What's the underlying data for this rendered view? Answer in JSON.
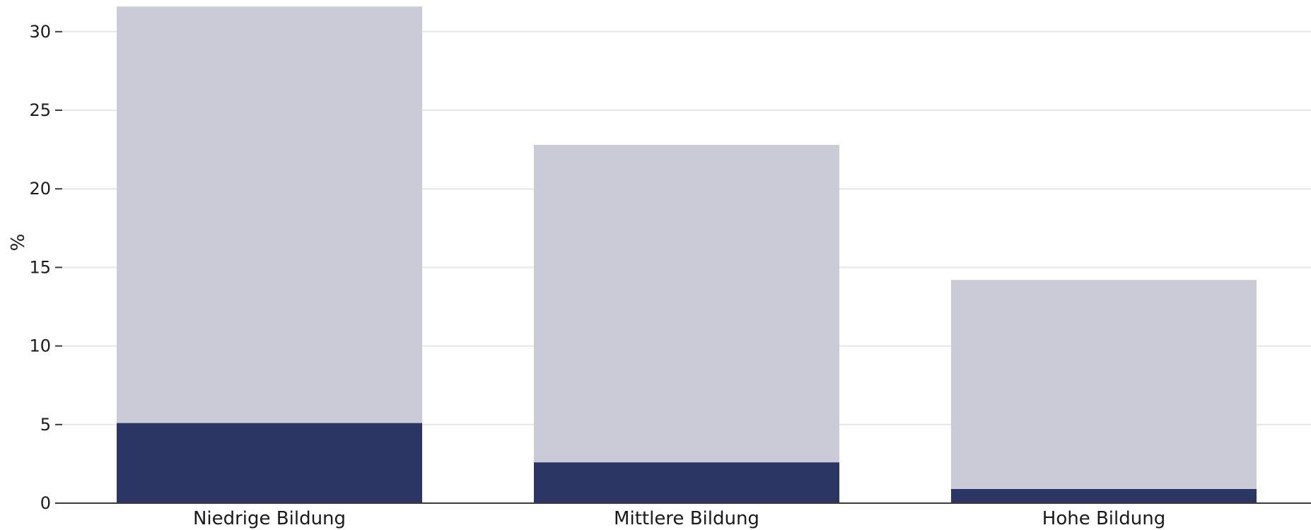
{
  "chart_data": {
    "type": "bar",
    "stacked": true,
    "categories": [
      "Niedrige Bildung",
      "Mittlere Bildung",
      "Hohe Bildung"
    ],
    "series": [
      {
        "values": [
          5.1,
          2.6,
          0.9
        ],
        "color": "#2b3664"
      },
      {
        "values": [
          26.5,
          20.2,
          13.3
        ],
        "color": "#cacbd7"
      }
    ],
    "xlabel": "",
    "ylabel": "%",
    "ylim": [
      0,
      31.6
    ],
    "yticks": [
      0,
      5,
      10,
      15,
      20,
      25,
      30
    ],
    "grid": true,
    "legend": "none"
  }
}
